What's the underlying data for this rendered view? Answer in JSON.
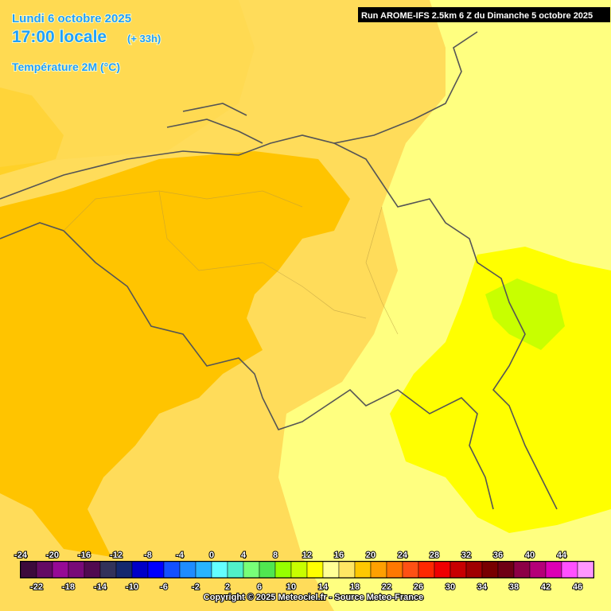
{
  "header": {
    "date": "Lundi 6 octobre 2025",
    "time": "17:00 locale",
    "lead": "(+ 33h)",
    "parameter": "Température 2M (°C)",
    "run": "Run AROME-IFS 2.5km 6 Z du Dimanche 5 octobre 2025"
  },
  "legend": {
    "values": [
      -24,
      -22,
      -20,
      -18,
      -16,
      -14,
      -12,
      -10,
      -8,
      -6,
      -4,
      -2,
      0,
      2,
      4,
      6,
      8,
      10,
      12,
      14,
      16,
      18,
      20,
      22,
      24,
      26,
      28,
      30,
      32,
      34,
      36,
      38,
      40,
      42,
      44,
      46
    ],
    "colors": [
      "#3c0a3c",
      "#640a64",
      "#960a96",
      "#780a78",
      "#500a50",
      "#32325a",
      "#14286e",
      "#0000c8",
      "#0000ff",
      "#1450ff",
      "#1e8cff",
      "#28b4ff",
      "#64ffff",
      "#50f0c8",
      "#78ff78",
      "#50e650",
      "#96ff00",
      "#c8ff00",
      "#ffff00",
      "#ffff96",
      "#ffe664",
      "#ffc800",
      "#ffa000",
      "#ff7800",
      "#ff5014",
      "#ff2800",
      "#f00000",
      "#c80000",
      "#a00000",
      "#780000",
      "#6e0014",
      "#8c0046",
      "#b40078",
      "#dc00b4",
      "#ff50ff",
      "#ff96ff"
    ]
  },
  "footer": {
    "copyright": "Copyright © 2025 Meteociel.fr - Source Meteo-France"
  }
}
